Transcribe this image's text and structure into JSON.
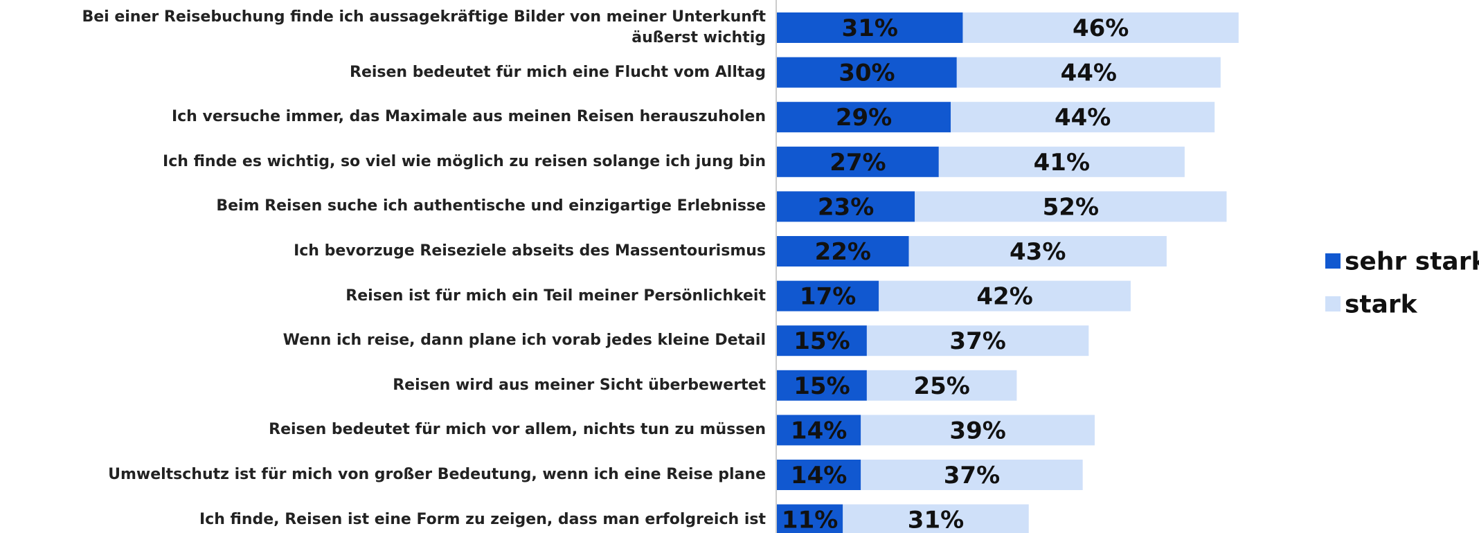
{
  "chart_data": {
    "type": "stacked_bar_horizontal",
    "categories": [
      "Bei einer Reisebuchung finde ich aussagekräftige Bilder von meiner Unterkunft äußerst wichtig",
      "Reisen bedeutet für mich eine Flucht vom Alltag",
      "Ich versuche immer, das Maximale aus meinen Reisen herauszuholen",
      "Ich finde es wichtig, so viel wie möglich zu reisen solange ich jung bin",
      "Beim Reisen suche ich authentische und einzigartige Erlebnisse",
      "Ich bevorzuge Reiseziele abseits des Massentourismus",
      "Reisen ist für mich ein Teil meiner Persönlichkeit",
      "Wenn ich reise, dann plane ich vorab jedes kleine Detail",
      "Reisen wird aus meiner Sicht überbewertet",
      "Reisen bedeutet für mich vor allem, nichts tun zu müssen",
      "Umweltschutz ist für mich von großer Bedeutung, wenn ich eine Reise plane",
      "Ich finde, Reisen ist eine Form zu zeigen, dass man erfolgreich ist"
    ],
    "series": [
      {
        "name": "sehr stark",
        "color": "#1158d0",
        "values": [
          31,
          30,
          29,
          27,
          23,
          22,
          17,
          15,
          15,
          14,
          14,
          11
        ],
        "value_labels": [
          "31%",
          "30%",
          "29%",
          "27%",
          "23%",
          "22%",
          "17%",
          "15%",
          "15%",
          "14%",
          "14%",
          "11%"
        ]
      },
      {
        "name": "stark",
        "color": "#cfe0f9",
        "values": [
          46,
          44,
          44,
          41,
          52,
          43,
          42,
          37,
          25,
          39,
          37,
          31
        ],
        "value_labels": [
          "46%",
          "44%",
          "44%",
          "41%",
          "52%",
          "43%",
          "42%",
          "37%",
          "25%",
          "39%",
          "37%",
          "31%"
        ]
      }
    ],
    "legend": "right"
  }
}
